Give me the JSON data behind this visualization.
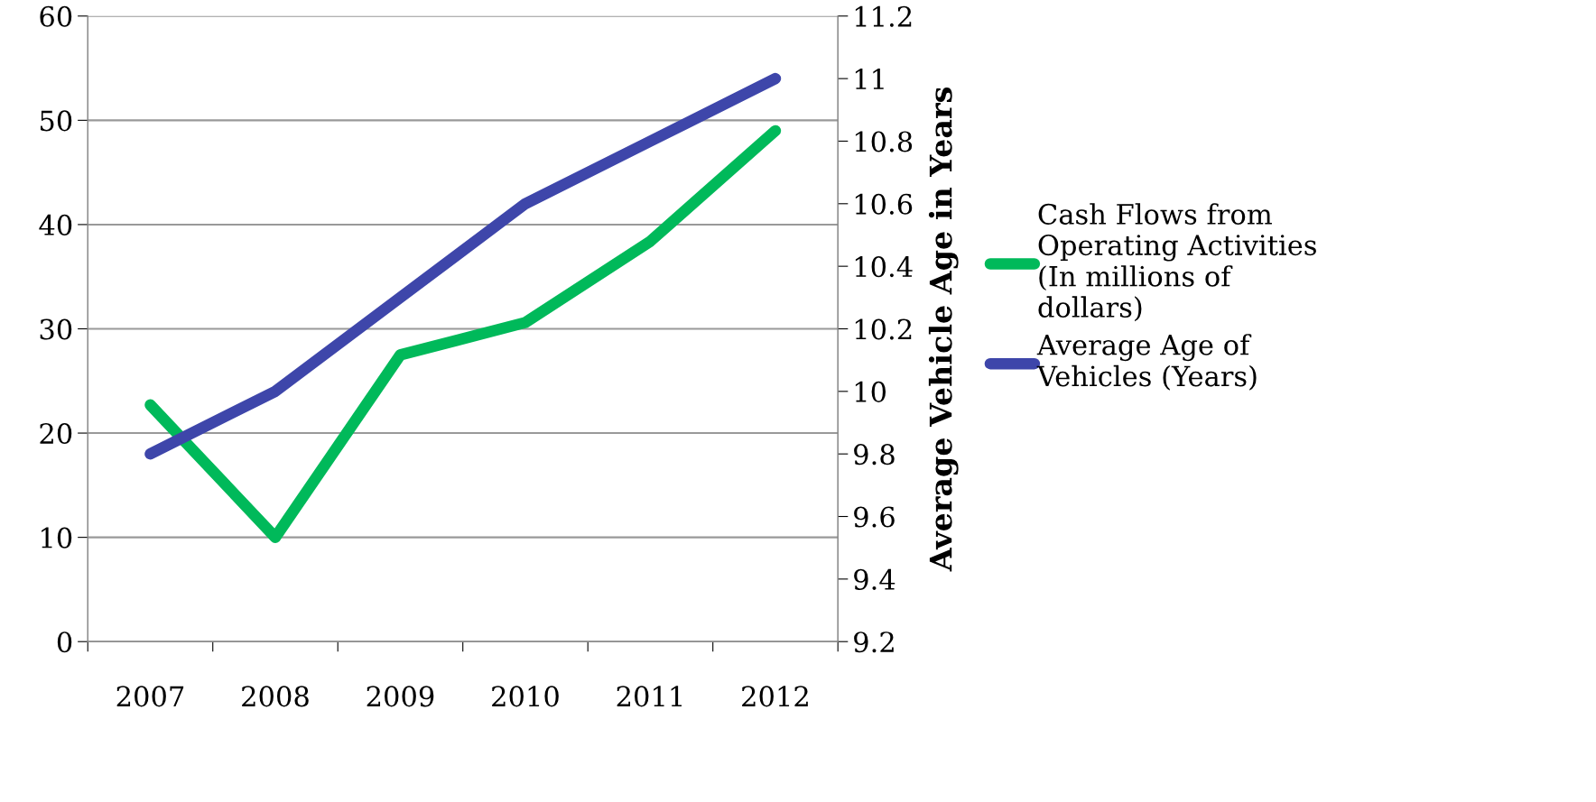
{
  "chart_data": {
    "type": "line",
    "categories": [
      "2007",
      "2008",
      "2009",
      "2010",
      "2011",
      "2012"
    ],
    "series": [
      {
        "name": "Cash Flows from Operating Activities (In millions of dollars)",
        "color": "#00b95a",
        "values": [
          22.7,
          10,
          27.5,
          30.6,
          38.4,
          49
        ]
      },
      {
        "name": "Average Age of Vehicles (Years)",
        "color": "#3e46aa",
        "values": [
          9.8,
          10.0,
          10.3,
          10.6,
          10.8,
          11.0
        ],
        "axis": "y2"
      }
    ],
    "ylim": [
      0,
      60
    ],
    "yticks": [
      0,
      10,
      20,
      30,
      40,
      50,
      60
    ],
    "y2lim": [
      9.2,
      11.2
    ],
    "y2ticks": [
      9.2,
      9.4,
      9.6,
      9.8,
      10,
      10.2,
      10.4,
      10.6,
      10.8,
      11,
      11.2
    ],
    "y2label": "Average Vehicle Age in Years",
    "grid": "y",
    "legend": "right",
    "line_style": "solid"
  }
}
